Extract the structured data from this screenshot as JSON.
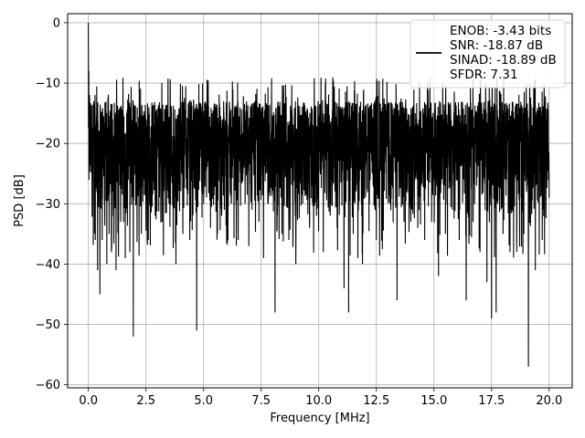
{
  "chart_data": {
    "type": "line",
    "xlabel": "Frequency [MHz]",
    "ylabel": "PSD [dB]",
    "xlim": [
      -0.9,
      21.0
    ],
    "ylim": [
      -60.5,
      1.5
    ],
    "xticks": [
      0.0,
      2.5,
      5.0,
      7.5,
      10.0,
      12.5,
      15.0,
      17.5,
      20.0
    ],
    "xtick_labels": [
      "0.0",
      "2.5",
      "5.0",
      "7.5",
      "10.0",
      "12.5",
      "15.0",
      "17.5",
      "20.0"
    ],
    "yticks": [
      0,
      -10,
      -20,
      -30,
      -40,
      -50,
      -60
    ],
    "ytick_labels": [
      "0",
      "−10",
      "−20",
      "−30",
      "−40",
      "−50",
      "−60"
    ],
    "grid": true,
    "legend_position": "top-right",
    "series": [
      {
        "name": "ENOB: -3.43 bits\nSNR: -18.87 dB\nSINAD: -18.89 dB\nSFDR: 7.31",
        "color": "#000000",
        "noise_floor_db": -22,
        "typical_upper_db": -13,
        "typical_lower_db": -33,
        "x": [
          0.0,
          0.02,
          0.05,
          0.1,
          0.15,
          0.2,
          0.3,
          0.4,
          0.5,
          0.6,
          0.7,
          0.8,
          0.9,
          1.0,
          1.2,
          1.4,
          1.6,
          1.8,
          1.95,
          2.1,
          2.3,
          2.6,
          2.9,
          3.2,
          3.5,
          3.8,
          4.1,
          4.4,
          4.7,
          5.0,
          5.3,
          5.6,
          5.9,
          6.2,
          6.5,
          6.8,
          7.1,
          7.4,
          7.6,
          7.8,
          8.1,
          8.4,
          8.7,
          9.0,
          9.3,
          9.6,
          9.9,
          10.2,
          10.5,
          10.8,
          11.1,
          11.3,
          11.5,
          11.7,
          11.9,
          12.2,
          12.5,
          12.8,
          13.1,
          13.4,
          13.7,
          14.0,
          14.3,
          14.6,
          14.9,
          15.2,
          15.5,
          15.8,
          16.1,
          16.4,
          16.7,
          17.0,
          17.3,
          17.5,
          17.7,
          18.0,
          18.3,
          18.6,
          18.9,
          19.1,
          19.4,
          19.7,
          20.0
        ],
        "y": [
          0.0,
          -8.0,
          -12.0,
          -16.0,
          -20.0,
          -25.0,
          -36.0,
          -41.0,
          -45.0,
          -36.0,
          -30.0,
          -40.0,
          -35.0,
          -38.0,
          -41.0,
          -33.0,
          -39.0,
          -38.0,
          -52.0,
          -30.0,
          -35.0,
          -36.0,
          -32.0,
          -33.0,
          -30.0,
          -40.0,
          -35.0,
          -36.0,
          -51.0,
          -30.0,
          -34.0,
          -35.0,
          -31.0,
          -30.0,
          -36.0,
          -30.0,
          -31.0,
          -33.0,
          -39.0,
          -30.0,
          -48.0,
          -35.0,
          -36.0,
          -40.0,
          -30.0,
          -34.0,
          -32.0,
          -38.0,
          -32.0,
          -34.0,
          -44.0,
          -48.0,
          -35.0,
          -39.0,
          -40.0,
          -30.0,
          -36.0,
          -34.0,
          -30.0,
          -46.0,
          -33.0,
          -33.0,
          -34.0,
          -36.0,
          -33.0,
          -42.0,
          -35.0,
          -31.0,
          -36.0,
          -46.0,
          -33.0,
          -38.0,
          -43.0,
          -49.0,
          -48.0,
          -35.0,
          -38.0,
          -33.0,
          -35.0,
          -57.0,
          -41.0,
          -36.0,
          -29.0
        ]
      }
    ]
  }
}
